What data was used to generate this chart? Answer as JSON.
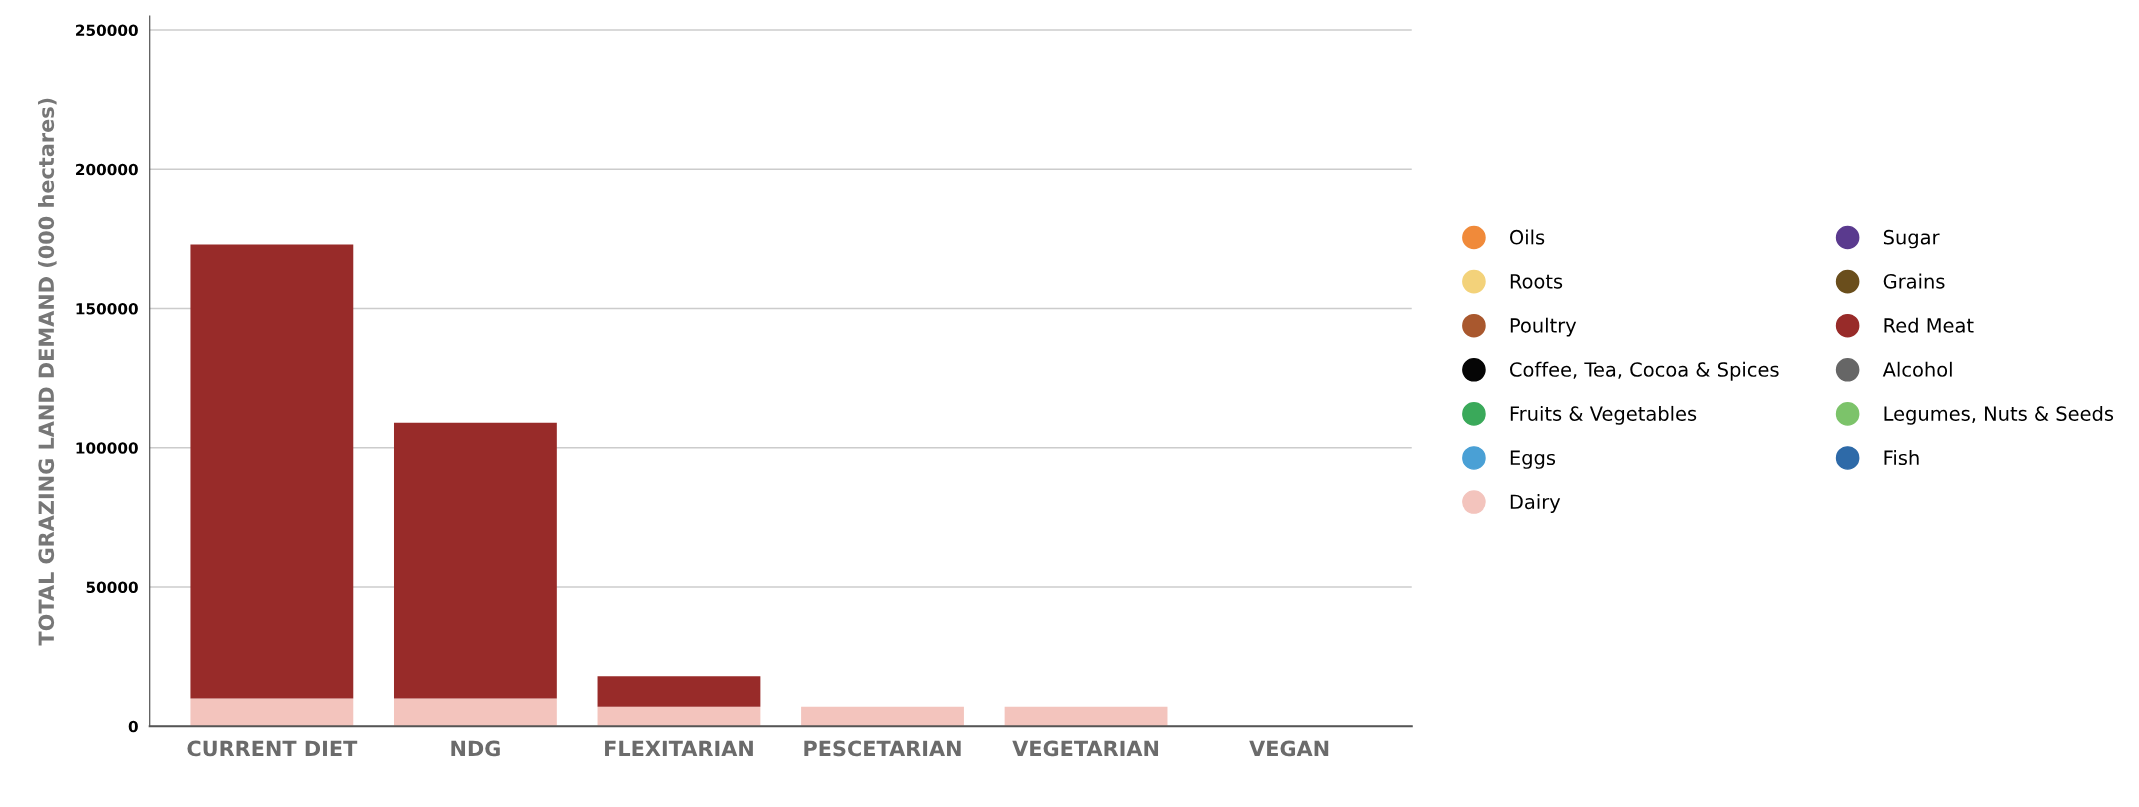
{
  "chart_data": {
    "type": "bar",
    "stacked": true,
    "ylabel": "TOTAL GRAZING LAND DEMAND (000 hectares)",
    "categories": [
      "CURRENT DIET",
      "NDG",
      "FLEXITARIAN",
      "PESCETARIAN",
      "VEGETARIAN",
      "VEGAN"
    ],
    "series": [
      {
        "name": "Oils",
        "color": "#f08a3a",
        "values": [
          0,
          0,
          0,
          0,
          0,
          0
        ]
      },
      {
        "name": "Roots",
        "color": "#f3d27a",
        "values": [
          0,
          0,
          0,
          0,
          0,
          0
        ]
      },
      {
        "name": "Poultry",
        "color": "#a9582e",
        "values": [
          0,
          0,
          0,
          0,
          0,
          0
        ]
      },
      {
        "name": "Coffee, Tea, Cocoa & Spices",
        "color": "#050505",
        "values": [
          0,
          0,
          0,
          0,
          0,
          0
        ]
      },
      {
        "name": "Fruits & Vegetables",
        "color": "#3aa95a",
        "values": [
          0,
          0,
          0,
          0,
          0,
          0
        ]
      },
      {
        "name": "Eggs",
        "color": "#4aa0d5",
        "values": [
          0,
          0,
          0,
          0,
          0,
          0
        ]
      },
      {
        "name": "Dairy",
        "color": "#f3c4bd",
        "values": [
          10000,
          10000,
          7000,
          7000,
          7000,
          0
        ]
      },
      {
        "name": "Sugar",
        "color": "#5a3a8e",
        "values": [
          0,
          0,
          0,
          0,
          0,
          0
        ]
      },
      {
        "name": "Grains",
        "color": "#6a4e1c",
        "values": [
          0,
          0,
          0,
          0,
          0,
          0
        ]
      },
      {
        "name": "Red Meat",
        "color": "#982b29",
        "values": [
          163000,
          99000,
          11000,
          0,
          0,
          0
        ]
      },
      {
        "name": "Alcohol",
        "color": "#666666",
        "values": [
          0,
          0,
          0,
          0,
          0,
          0
        ]
      },
      {
        "name": "Legumes, Nuts & Seeds",
        "color": "#7cc36a",
        "values": [
          0,
          0,
          0,
          0,
          0,
          0
        ]
      },
      {
        "name": "Fish",
        "color": "#2e6aa8",
        "values": [
          0,
          0,
          0,
          0,
          0,
          0
        ]
      }
    ],
    "ylim": [
      0,
      255000
    ],
    "yticks": [
      0,
      50000,
      100000,
      150000,
      200000,
      250000
    ],
    "grid": "y",
    "legend": "right"
  }
}
